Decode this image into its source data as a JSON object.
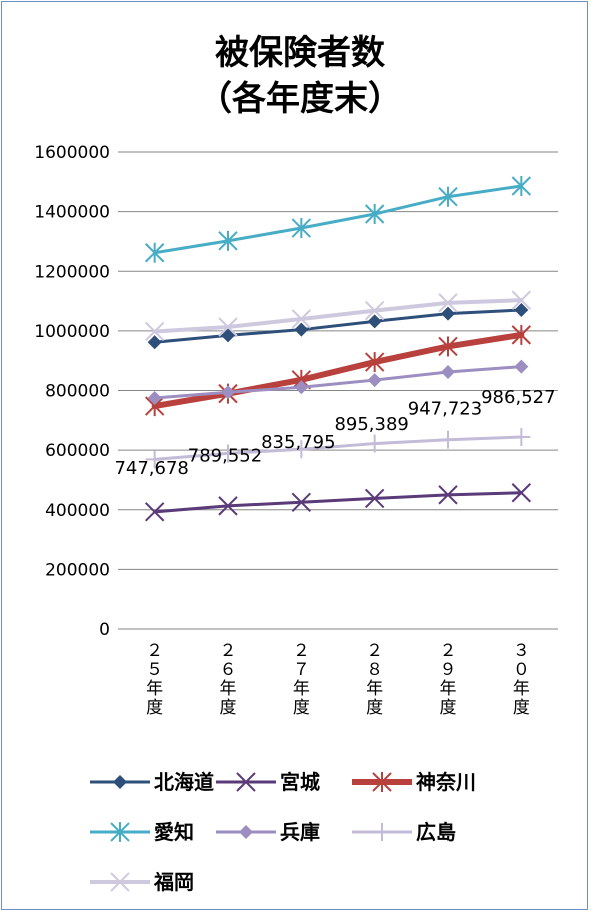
{
  "chart_data": {
    "type": "line",
    "title_lines": [
      "被保険者数",
      "（各年度末）"
    ],
    "categories": [
      [
        "２",
        "５",
        "年",
        "度"
      ],
      [
        "２",
        "６",
        "年",
        "度"
      ],
      [
        "２",
        "７",
        "年",
        "度"
      ],
      [
        "２",
        "８",
        "年",
        "度"
      ],
      [
        "２",
        "９",
        "年",
        "度"
      ],
      [
        "３",
        "０",
        "年",
        "度"
      ]
    ],
    "ylim": [
      0,
      1600000
    ],
    "yticks": [
      0,
      200000,
      400000,
      600000,
      800000,
      1000000,
      1200000,
      1400000,
      1600000
    ],
    "ytick_labels": [
      "0",
      "200000",
      "400000",
      "600000",
      "800000",
      "1000000",
      "1200000",
      "1400000",
      "1600000"
    ],
    "grid": true,
    "legend_position": "bottom",
    "series": [
      {
        "name": "北海道",
        "color": "#2e4f7a",
        "marker": "diamond",
        "width": 3,
        "values": [
          962000,
          985000,
          1004000,
          1032000,
          1058000,
          1070000
        ]
      },
      {
        "name": "宮城",
        "color": "#5a3a78",
        "marker": "x",
        "width": 3,
        "values": [
          393000,
          413000,
          425000,
          438000,
          450000,
          457000
        ]
      },
      {
        "name": "神奈川",
        "color": "#b8413d",
        "marker": "star",
        "width": 6,
        "values": [
          747678,
          789552,
          835795,
          895389,
          947723,
          986527
        ]
      },
      {
        "name": "愛知",
        "color": "#47acc5",
        "marker": "star",
        "width": 3,
        "values": [
          1262000,
          1302000,
          1345000,
          1392000,
          1450000,
          1486000
        ]
      },
      {
        "name": "兵庫",
        "color": "#9c8ec0",
        "marker": "diamond",
        "width": 3,
        "values": [
          775000,
          794000,
          811000,
          835000,
          862000,
          880000
        ]
      },
      {
        "name": "広島",
        "color": "#c3bbd8",
        "marker": "plus",
        "width": 3,
        "values": [
          569000,
          589000,
          603000,
          622000,
          635000,
          644000
        ]
      },
      {
        "name": "福岡",
        "color": "#cfc9df",
        "marker": "x",
        "width": 4,
        "values": [
          998000,
          1013000,
          1040000,
          1068000,
          1094000,
          1103000
        ]
      }
    ],
    "data_labels": {
      "series": "神奈川",
      "labels": [
        "747,678",
        "789,552",
        "835,795",
        "895,389",
        "947,723",
        "986,527"
      ]
    }
  }
}
